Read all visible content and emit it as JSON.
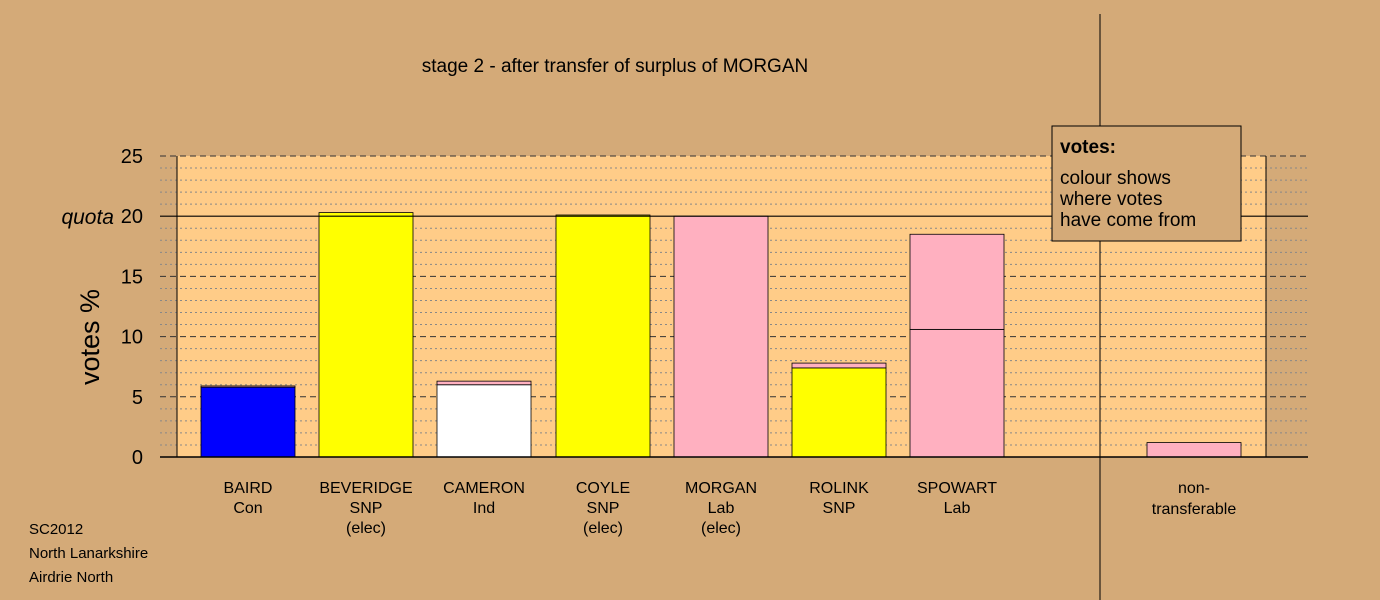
{
  "credits": [
    "SC2012",
    "North Lanarkshire",
    "Airdrie North"
  ],
  "chart_data": {
    "type": "bar",
    "title": "stage 2 - after transfer of surplus of MORGAN",
    "ylabel": "votes %",
    "ylim": [
      0,
      25
    ],
    "yticks": [
      0,
      5,
      10,
      15,
      20,
      25
    ],
    "quota": 20,
    "quota_label": "quota",
    "grid": true,
    "colors": {
      "Con": "#0000ff",
      "SNP": "#ffff00",
      "Ind": "#ffffff",
      "Lab": "#ffb0c0",
      "plot_bg": "#ffcc88",
      "page_bg": "#d4aa78"
    },
    "legend": {
      "title": "votes:",
      "lines": [
        "colour shows",
        "where votes",
        "have come from"
      ]
    },
    "candidates": [
      {
        "name": "BAIRD",
        "party": "Con",
        "status": "",
        "segments": [
          {
            "from": "Con",
            "value": 5.8
          },
          {
            "from": "Lab",
            "value": 0.1
          }
        ]
      },
      {
        "name": "BEVERIDGE",
        "party": "SNP",
        "status": "(elec)",
        "segments": [
          {
            "from": "SNP",
            "value": 20.3
          }
        ]
      },
      {
        "name": "CAMERON",
        "party": "Ind",
        "status": "",
        "segments": [
          {
            "from": "Ind",
            "value": 6.0
          },
          {
            "from": "Lab",
            "value": 0.3
          }
        ]
      },
      {
        "name": "COYLE",
        "party": "SNP",
        "status": "(elec)",
        "segments": [
          {
            "from": "SNP",
            "value": 20.1
          }
        ]
      },
      {
        "name": "MORGAN",
        "party": "Lab",
        "status": "(elec)",
        "segments": [
          {
            "from": "Lab",
            "value": 20.0
          }
        ]
      },
      {
        "name": "ROLINK",
        "party": "SNP",
        "status": "",
        "segments": [
          {
            "from": "SNP",
            "value": 7.4
          },
          {
            "from": "Lab",
            "value": 0.4
          }
        ]
      },
      {
        "name": "SPOWART",
        "party": "Lab",
        "status": "",
        "segments": [
          {
            "from": "Lab",
            "value": 10.6
          },
          {
            "from": "Lab",
            "value": 7.9
          }
        ]
      }
    ],
    "nontransferable": {
      "label": [
        "non-",
        "transferable"
      ],
      "value": 1.2,
      "from": "Lab"
    }
  }
}
